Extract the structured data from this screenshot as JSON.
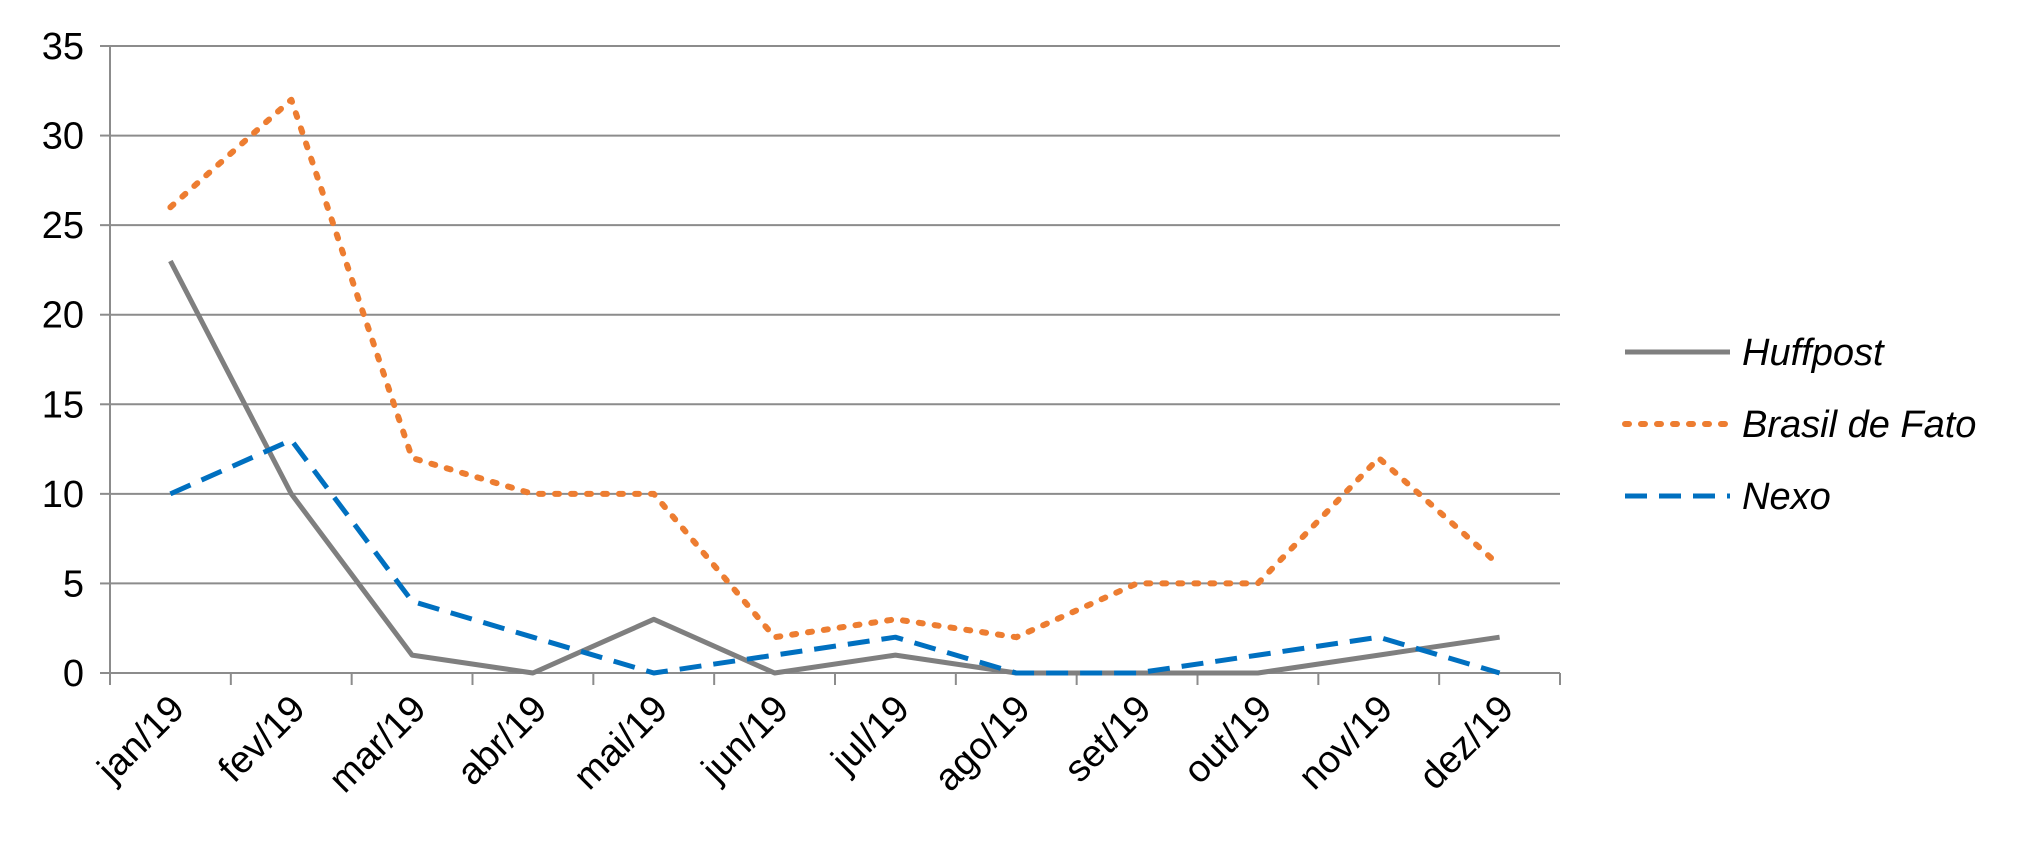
{
  "chart_data": {
    "type": "line",
    "categories": [
      "jan/19",
      "fev/19",
      "mar/19",
      "abr/19",
      "mai/19",
      "jun/19",
      "jul/19",
      "ago/19",
      "set/19",
      "out/19",
      "nov/19",
      "dez/19"
    ],
    "yticks": [
      "0",
      "5",
      "10",
      "15",
      "20",
      "25",
      "30",
      "35"
    ],
    "ylim": [
      0,
      35
    ],
    "grid": true,
    "legend_position": "right",
    "series": [
      {
        "name": "Huffpost",
        "color": "#7f7f7f",
        "style": "solid",
        "values": [
          23,
          10,
          1,
          0,
          3,
          0,
          1,
          0,
          0,
          0,
          1,
          2
        ]
      },
      {
        "name": "Brasil de Fato",
        "color": "#ed7d31",
        "style": "dotted",
        "values": [
          26,
          32,
          12,
          10,
          10,
          2,
          3,
          2,
          5,
          5,
          12,
          6
        ]
      },
      {
        "name": "Nexo",
        "color": "#0070c0",
        "style": "dashed",
        "values": [
          10,
          13,
          4,
          2,
          0,
          1,
          2,
          0,
          0,
          1,
          2,
          0
        ]
      }
    ]
  }
}
